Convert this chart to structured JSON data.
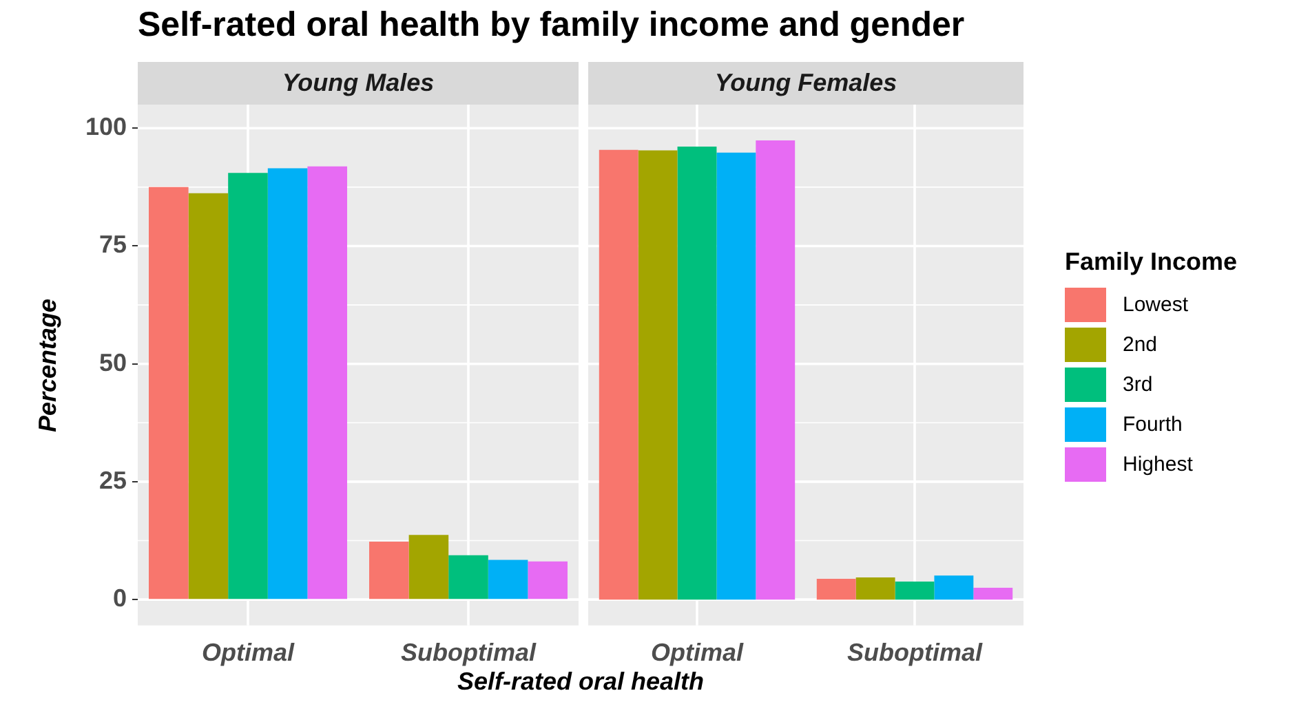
{
  "chart_data": [
    {
      "type": "bar",
      "title": "Self-rated oral health by family income and gender",
      "subtitle": "Young Males",
      "xlabel": "Self-rated oral health",
      "ylabel": "Percentage",
      "legend_title": "Family Income",
      "categories": [
        "Optimal",
        "Suboptimal"
      ],
      "series": [
        {
          "name": "Lowest",
          "color": "#f8766d",
          "values": [
            87.5,
            12.3
          ]
        },
        {
          "name": "2nd",
          "color": "#a3a500",
          "values": [
            86.2,
            13.7
          ]
        },
        {
          "name": "3rd",
          "color": "#00bf7d",
          "values": [
            90.5,
            9.4
          ]
        },
        {
          "name": "Fourth",
          "color": "#00b0f6",
          "values": [
            91.5,
            8.4
          ]
        },
        {
          "name": "Highest",
          "color": "#e76bf3",
          "values": [
            91.9,
            8.1
          ]
        }
      ],
      "ylim": [
        -5.5,
        105
      ],
      "yticks": [
        0,
        25,
        50,
        75,
        100
      ],
      "grid": true,
      "legend": "right"
    },
    {
      "type": "bar",
      "subtitle": "Young Females",
      "categories": [
        "Optimal",
        "Suboptimal"
      ],
      "series": [
        {
          "color": "#f8766d",
          "values": [
            95.4,
            4.4
          ]
        },
        {
          "color": "#a3a500",
          "values": [
            95.3,
            4.7
          ]
        },
        {
          "color": "#00bf7d",
          "values": [
            96.1,
            3.8
          ]
        },
        {
          "color": "#00b0f6",
          "values": [
            94.8,
            5.1
          ]
        },
        {
          "color": "#e76bf3",
          "values": [
            97.4,
            2.5
          ]
        }
      ],
      "ylim": [
        -5.5,
        105
      ],
      "yticks": [
        0,
        25,
        50,
        75,
        100
      ],
      "grid": true,
      "tick_labels": "x"
    }
  ]
}
